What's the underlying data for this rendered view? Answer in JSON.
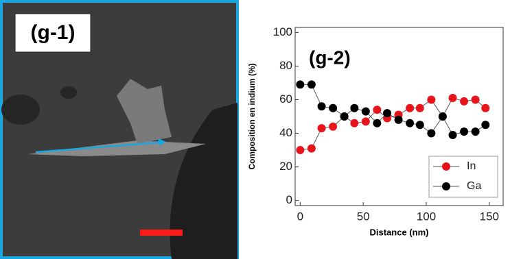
{
  "image_panel": {
    "label": "(g-1)"
  },
  "chart_data": {
    "type": "line",
    "annotation": "(g-2)",
    "x_label": "Distance (nm)",
    "y_label": "Composition en indium (%)",
    "x": [
      0,
      9,
      17,
      26,
      35,
      43,
      52,
      61,
      69,
      78,
      87,
      95,
      104,
      113,
      121,
      130,
      139,
      147
    ],
    "series": [
      {
        "name": "In",
        "color": "#e8141b",
        "values": [
          30,
          31,
          43,
          44,
          50,
          46,
          47,
          54,
          49,
          51,
          55,
          55,
          60,
          50,
          61,
          59,
          60,
          55
        ]
      },
      {
        "name": "Ga",
        "color": "#000000",
        "values": [
          69,
          69,
          56,
          55,
          50,
          55,
          53,
          46,
          52,
          48,
          46,
          45,
          40,
          50,
          39,
          41,
          41,
          45
        ]
      }
    ],
    "xlim": [
      -4,
      161
    ],
    "ylim": [
      -3,
      103
    ],
    "xticks": [
      0,
      50,
      100,
      150
    ],
    "yticks": [
      0,
      20,
      40,
      60,
      80,
      100
    ],
    "legend": "lower right"
  }
}
